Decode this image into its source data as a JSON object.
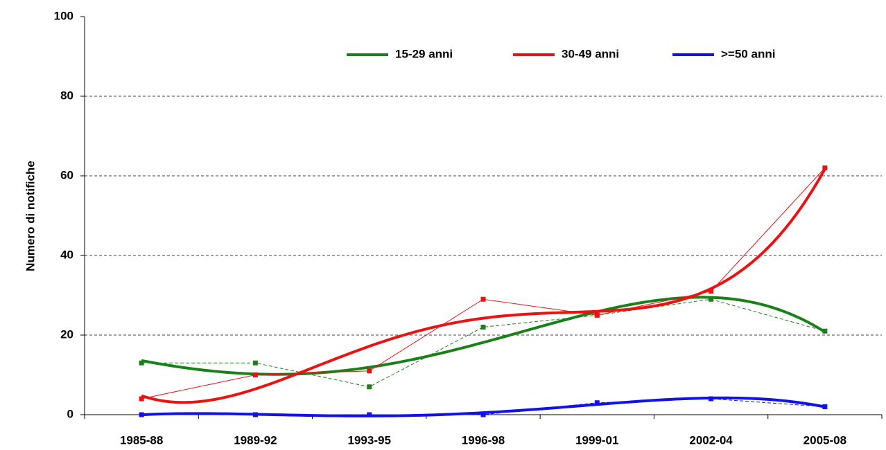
{
  "chart_data": {
    "type": "line",
    "y_axis_label": "Numero di notifiche",
    "categories": [
      "1985-88",
      "1989-92",
      "1993-95",
      "1996-98",
      "1999-01",
      "2002-04",
      "2005-08"
    ],
    "series": [
      {
        "name": "15-29 anni",
        "color": "#1a801a",
        "dash": true,
        "values": [
          13,
          13,
          7,
          22,
          25,
          29,
          21
        ]
      },
      {
        "name": "30-49 anni",
        "color": "#ee1111",
        "dash": false,
        "values": [
          4,
          10,
          11,
          29,
          25,
          31,
          62
        ]
      },
      {
        "name": ">=50 anni",
        "color": "#1111ee",
        "dash": true,
        "values": [
          0,
          0,
          0,
          0,
          3,
          4,
          2
        ]
      }
    ],
    "trendline": "polynomial",
    "ylim": [
      0,
      100
    ],
    "yticks": [
      0,
      20,
      40,
      60,
      80,
      100
    ],
    "grid": true,
    "legend": "top"
  }
}
